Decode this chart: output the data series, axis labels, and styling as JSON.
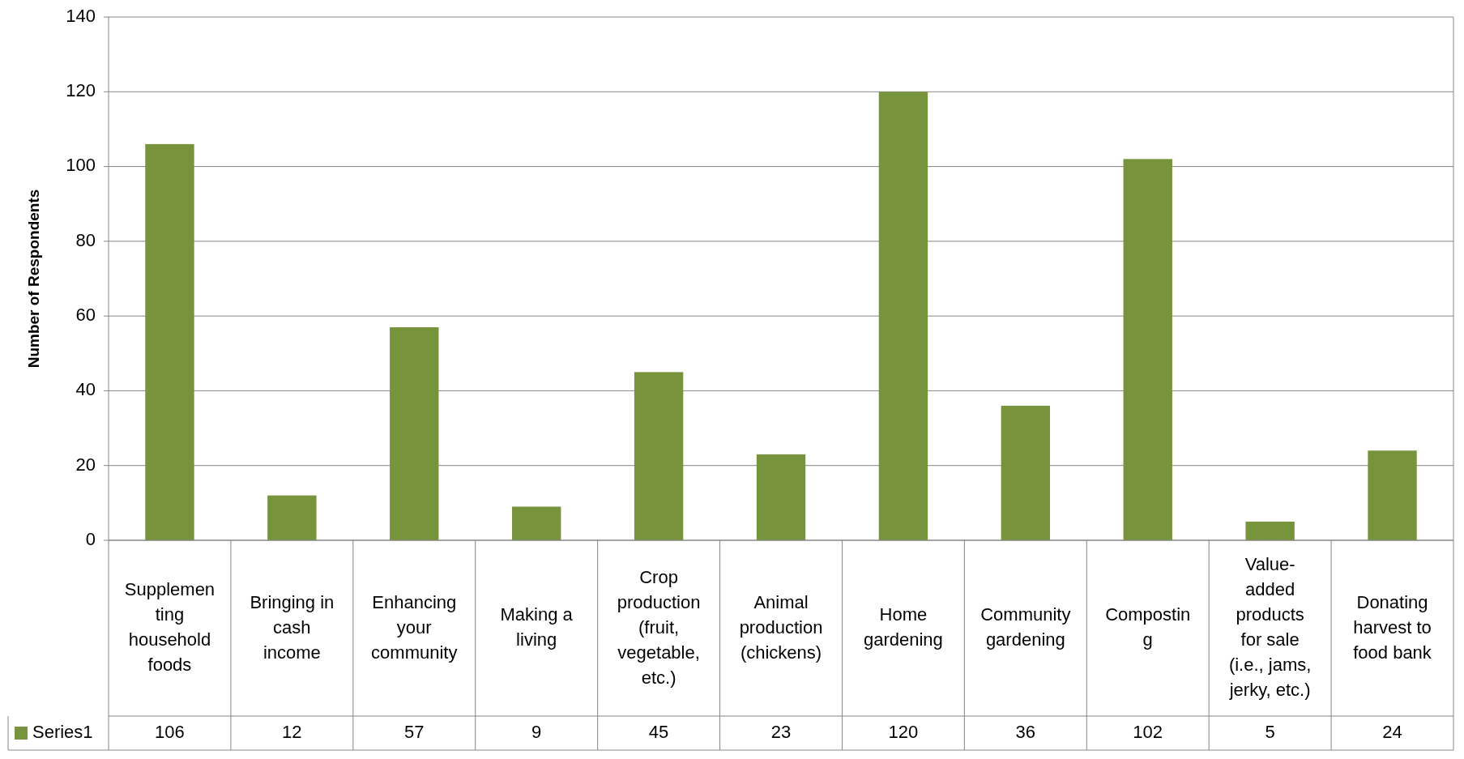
{
  "chart_data": {
    "type": "bar",
    "ylabel": "Number of Respondents",
    "categories": [
      "Supplemen\nting\nhousehold\nfoods",
      "Bringing in\ncash\nincome",
      "Enhancing\nyour\ncommunity",
      "Making a\nliving",
      "Crop\nproduction\n(fruit,\nvegetable,\netc.)",
      "Animal\nproduction\n(chickens)",
      "Home\ngardening",
      "Community\ngardening",
      "Compostin\ng",
      "Value-\nadded\nproducts\nfor sale\n(i.e., jams,\njerky, etc.)",
      "Donating\nharvest to\nfood bank"
    ],
    "series": [
      {
        "name": "Series1",
        "color": "#77933c",
        "values": [
          106,
          12,
          57,
          9,
          45,
          23,
          120,
          36,
          102,
          5,
          24
        ]
      }
    ],
    "ylim": [
      0,
      140
    ],
    "yticks": [
      0,
      20,
      40,
      60,
      80,
      100,
      120,
      140
    ],
    "grid": "y",
    "legend": "bottom",
    "data_labels": true
  }
}
